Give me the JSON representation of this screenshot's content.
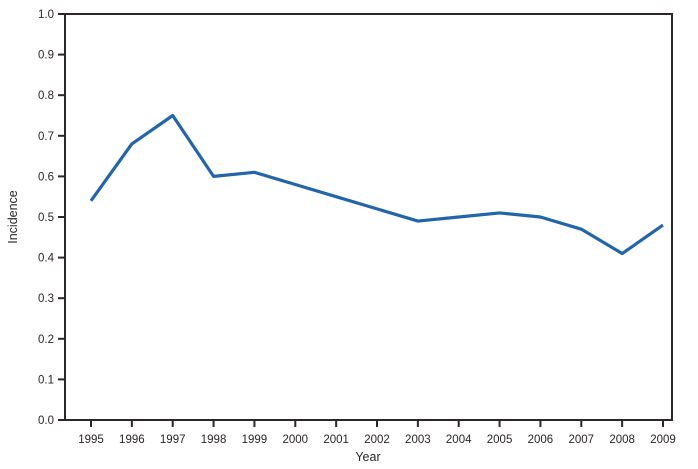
{
  "chart_data": {
    "type": "line",
    "title": "",
    "xlabel": "Year",
    "ylabel": "Incidence",
    "categories": [
      "1995",
      "1996",
      "1997",
      "1998",
      "1999",
      "2000",
      "2001",
      "2002",
      "2003",
      "2004",
      "2005",
      "2006",
      "2007",
      "2008",
      "2009"
    ],
    "series": [
      {
        "name": "Incidence",
        "values": [
          0.54,
          0.68,
          0.75,
          0.6,
          0.61,
          0.58,
          0.55,
          0.52,
          0.49,
          0.5,
          0.51,
          0.5,
          0.47,
          0.41,
          0.48
        ]
      }
    ],
    "ylim": [
      0.0,
      1.0
    ],
    "ytick_step": 0.1,
    "ytick_labels": [
      "0.0",
      "0.1",
      "0.2",
      "0.3",
      "0.4",
      "0.5",
      "0.6",
      "0.7",
      "0.8",
      "0.9",
      "1.0"
    ],
    "grid": false,
    "legend_position": "none",
    "line_color": "#2365ab",
    "axis_color": "#2b2628",
    "text_color": "#2b2628"
  }
}
